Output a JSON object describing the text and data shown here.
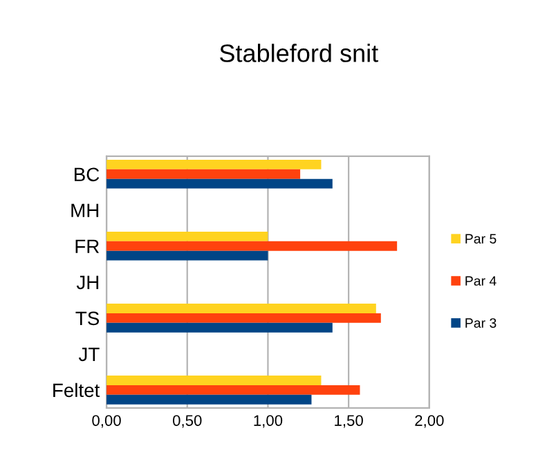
{
  "chart_data": {
    "type": "bar",
    "orientation": "horizontal",
    "title": "Stableford snit",
    "categories": [
      "BC",
      "MH",
      "FR",
      "JH",
      "TS",
      "JT",
      "Feltet"
    ],
    "series": [
      {
        "name": "Par 5",
        "color": "#ffd320",
        "values": [
          1.33,
          null,
          1.0,
          null,
          1.67,
          null,
          1.33
        ]
      },
      {
        "name": "Par 4",
        "color": "#ff420e",
        "values": [
          1.2,
          null,
          1.8,
          null,
          1.7,
          null,
          1.57
        ]
      },
      {
        "name": "Par 3",
        "color": "#004586",
        "values": [
          1.4,
          null,
          1.0,
          null,
          1.4,
          null,
          1.27
        ]
      }
    ],
    "xlim": [
      0,
      2
    ],
    "xticks": [
      {
        "value": 0,
        "label": "0,00"
      },
      {
        "value": 0.5,
        "label": "0,50"
      },
      {
        "value": 1,
        "label": "1,00"
      },
      {
        "value": 1.5,
        "label": "1,50"
      },
      {
        "value": 2,
        "label": "2,00"
      }
    ],
    "grid": "x",
    "legend": "right"
  }
}
